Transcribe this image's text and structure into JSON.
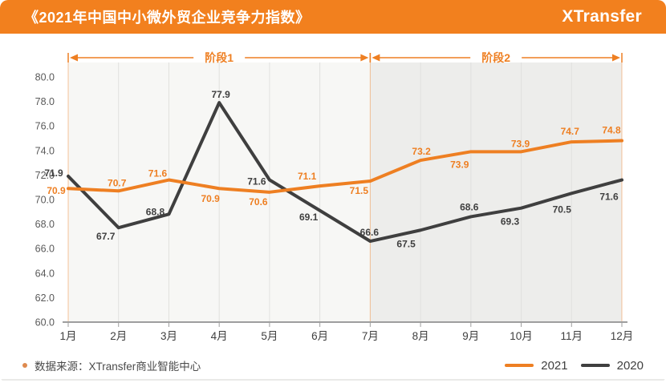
{
  "header": {
    "title": "《2021年中国中小微外贸企业竞争力指数》",
    "logo": "XTransfer",
    "bg_color": "#F2801E",
    "text_color": "#FFFFFF"
  },
  "chart_data": {
    "type": "line",
    "title": "2021年中国中小微外贸企业竞争力指数",
    "categories": [
      "1月",
      "2月",
      "3月",
      "4月",
      "5月",
      "6月",
      "7月",
      "8月",
      "9月",
      "10月",
      "11月",
      "12月"
    ],
    "series": [
      {
        "name": "2021",
        "color": "#EE7F22",
        "values": [
          70.9,
          70.7,
          71.6,
          70.9,
          70.6,
          71.1,
          71.5,
          73.2,
          73.9,
          73.9,
          74.7,
          74.8
        ],
        "label_offsets": [
          [
            -15,
            3
          ],
          [
            -2,
            -10
          ],
          [
            -14,
            -8
          ],
          [
            -11,
            13
          ],
          [
            -14,
            12
          ],
          [
            -16,
            -12
          ],
          [
            -14,
            12
          ],
          [
            1,
            -11
          ],
          [
            -14,
            16
          ],
          [
            -1,
            -10
          ],
          [
            -2,
            -13
          ],
          [
            -13,
            -13
          ]
        ]
      },
      {
        "name": "2020",
        "color": "#3F3F3F",
        "values": [
          71.9,
          67.7,
          68.8,
          77.9,
          71.6,
          69.1,
          66.6,
          67.5,
          68.6,
          69.3,
          70.5,
          71.6
        ],
        "label_offsets": [
          [
            -18,
            -4
          ],
          [
            -16,
            11
          ],
          [
            -17,
            -3
          ],
          [
            2,
            -10
          ],
          [
            -16,
            2
          ],
          [
            -14,
            8
          ],
          [
            -1,
            -11
          ],
          [
            -18,
            17
          ],
          [
            -2,
            -12
          ],
          [
            -14,
            17
          ],
          [
            -12,
            20
          ],
          [
            -16,
            21
          ]
        ]
      }
    ],
    "ylim": [
      60,
      80
    ],
    "yticks": [
      60,
      62,
      64,
      66,
      68,
      70,
      72,
      74,
      76,
      78,
      80
    ],
    "grid": "vertical",
    "legend_position": "bottom-right",
    "phases": [
      {
        "label": "阶段1",
        "start": 0,
        "end": 6
      },
      {
        "label": "阶段2",
        "start": 6,
        "end": 11
      }
    ],
    "phase_colors": [
      "#F7F7F5",
      "#EDEDEB"
    ],
    "accent_color": "#EE7F22",
    "axis_color": "#9E9E9E",
    "gridline_color": "#E0E0DE",
    "ytick_color": "#595959",
    "xtick_color": "#3F3F3F"
  },
  "footer": {
    "source": "数据来源：XTransfer商业智能中心",
    "legend": [
      {
        "label": "2021",
        "color": "#EE7F22"
      },
      {
        "label": "2020",
        "color": "#3F3F3F"
      }
    ]
  }
}
